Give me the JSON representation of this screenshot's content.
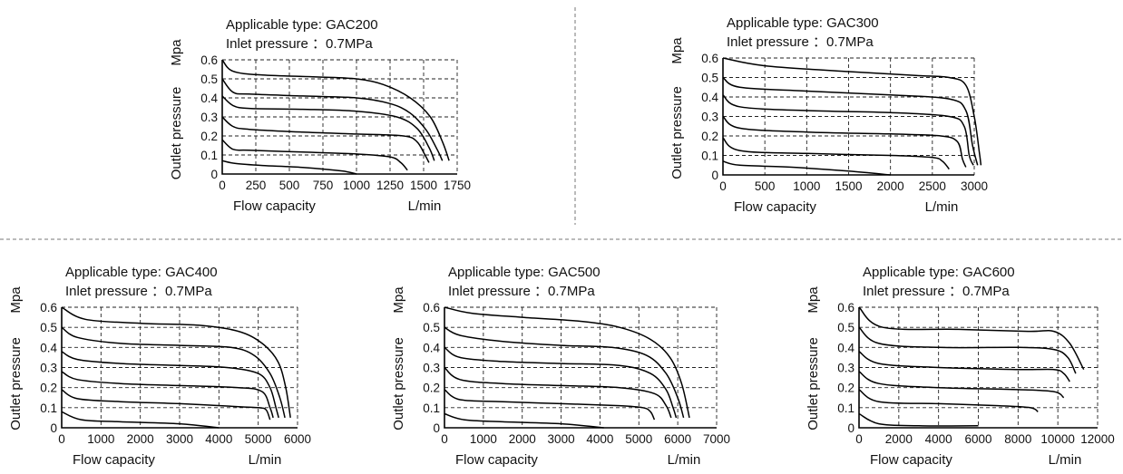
{
  "figure": {
    "flow_label": "Flow capacity",
    "flow_unit": "L/min",
    "outlet_label": "Outlet pressure",
    "pressure_unit": "Mpa"
  },
  "chart_data": [
    {
      "type": "line",
      "title": "Applicable type: GAC200",
      "subtitle": "Inlet pressure ：0.7MPa",
      "xlabel": "Flow capacity",
      "xunit": "L/min",
      "ylabel": "Outlet pressure",
      "yunit": "Mpa",
      "xlim": [
        0,
        1750
      ],
      "ylim": [
        0,
        0.6
      ],
      "xticks": [
        0,
        250,
        500,
        750,
        1000,
        1250,
        1500,
        1750
      ],
      "xtick_labels": [
        "0",
        "250",
        "500",
        "750",
        "1000",
        "1250",
        "1500",
        "1750"
      ],
      "yticks": [
        0,
        0.1,
        0.2,
        0.3,
        0.4,
        0.5,
        0.6
      ],
      "grid": true,
      "series": [
        {
          "x": [
            0,
            100,
            300,
            600,
            900,
            1000
          ],
          "y": [
            0.07,
            0.055,
            0.045,
            0.035,
            0.015,
            0.0
          ]
        },
        {
          "x": [
            0,
            80,
            200,
            600,
            1000,
            1250,
            1330,
            1380
          ],
          "y": [
            0.18,
            0.13,
            0.125,
            0.115,
            0.105,
            0.09,
            0.06,
            0.02
          ]
        },
        {
          "x": [
            0,
            80,
            200,
            600,
            1000,
            1350,
            1450,
            1510,
            1540
          ],
          "y": [
            0.3,
            0.25,
            0.235,
            0.22,
            0.21,
            0.2,
            0.17,
            0.1,
            0.06
          ]
        },
        {
          "x": [
            0,
            80,
            200,
            600,
            1000,
            1300,
            1450,
            1540,
            1580
          ],
          "y": [
            0.41,
            0.36,
            0.345,
            0.34,
            0.33,
            0.3,
            0.24,
            0.14,
            0.07
          ]
        },
        {
          "x": [
            0,
            80,
            200,
            600,
            1000,
            1250,
            1400,
            1520,
            1600,
            1640
          ],
          "y": [
            0.5,
            0.43,
            0.42,
            0.41,
            0.4,
            0.37,
            0.32,
            0.23,
            0.13,
            0.07
          ]
        },
        {
          "x": [
            0,
            80,
            300,
            700,
            1000,
            1200,
            1400,
            1550,
            1640,
            1690
          ],
          "y": [
            0.6,
            0.54,
            0.52,
            0.51,
            0.5,
            0.47,
            0.4,
            0.3,
            0.17,
            0.07
          ]
        }
      ]
    },
    {
      "type": "line",
      "title": "Applicable type: GAC300",
      "subtitle": "Inlet pressure ：0.7MPa",
      "xlabel": "Flow capacity",
      "xunit": "L/min",
      "ylabel": "Outlet pressure",
      "yunit": "Mpa",
      "xlim": [
        0,
        3000
      ],
      "ylim": [
        0,
        0.6
      ],
      "xticks": [
        0,
        500,
        1000,
        1500,
        2000,
        2500,
        3000
      ],
      "xtick_labels": [
        "0",
        "500",
        "1000",
        "1500",
        "2000",
        "2500",
        "3000"
      ],
      "yticks": [
        0,
        0.1,
        0.2,
        0.3,
        0.4,
        0.5,
        0.6
      ],
      "grid": true,
      "series": [
        {
          "x": [
            0,
            200,
            800,
            1500,
            2000
          ],
          "y": [
            0.07,
            0.05,
            0.04,
            0.02,
            0.0
          ]
        },
        {
          "x": [
            0,
            200,
            1000,
            2000,
            2500,
            2620,
            2700
          ],
          "y": [
            0.19,
            0.125,
            0.11,
            0.1,
            0.09,
            0.07,
            0.03
          ]
        },
        {
          "x": [
            0,
            200,
            1000,
            2000,
            2600,
            2800,
            2860,
            2900
          ],
          "y": [
            0.3,
            0.24,
            0.22,
            0.21,
            0.2,
            0.17,
            0.08,
            0.04
          ]
        },
        {
          "x": [
            0,
            200,
            1000,
            2000,
            2700,
            2880,
            2940,
            2990
          ],
          "y": [
            0.41,
            0.35,
            0.33,
            0.32,
            0.3,
            0.25,
            0.1,
            0.05
          ]
        },
        {
          "x": [
            0,
            200,
            1000,
            2000,
            2700,
            2900,
            2980,
            3040
          ],
          "y": [
            0.5,
            0.45,
            0.43,
            0.41,
            0.39,
            0.33,
            0.15,
            0.05
          ]
        },
        {
          "x": [
            0,
            500,
            1500,
            2300,
            2700,
            2900,
            3000,
            3060,
            3080
          ],
          "y": [
            0.6,
            0.56,
            0.53,
            0.51,
            0.5,
            0.46,
            0.3,
            0.12,
            0.05
          ]
        }
      ]
    },
    {
      "type": "line",
      "title": "Applicable type: GAC400",
      "subtitle": "Inlet pressure ：0.7MPa",
      "xlabel": "Flow capacity",
      "xunit": "L/min",
      "ylabel": "Outlet pressure",
      "yunit": "Mpa",
      "xlim": [
        0,
        6000
      ],
      "ylim": [
        0,
        0.6
      ],
      "xticks": [
        0,
        1000,
        2000,
        3000,
        4000,
        5000,
        6000
      ],
      "xtick_labels": [
        "0",
        "1000",
        "2000",
        "3000",
        "4000",
        "5000",
        "6000"
      ],
      "yticks": [
        0,
        0.1,
        0.2,
        0.3,
        0.4,
        0.5,
        0.6
      ],
      "grid": true,
      "series": [
        {
          "x": [
            0,
            500,
            1500,
            3000,
            4000
          ],
          "y": [
            0.08,
            0.04,
            0.03,
            0.02,
            0.0
          ]
        },
        {
          "x": [
            0,
            400,
            1500,
            3000,
            4500,
            5000,
            5200,
            5300
          ],
          "y": [
            0.19,
            0.145,
            0.13,
            0.12,
            0.105,
            0.1,
            0.09,
            0.04
          ]
        },
        {
          "x": [
            0,
            400,
            1500,
            3000,
            4500,
            5100,
            5300,
            5380
          ],
          "y": [
            0.28,
            0.24,
            0.22,
            0.21,
            0.2,
            0.18,
            0.1,
            0.05
          ]
        },
        {
          "x": [
            0,
            400,
            1500,
            3000,
            4200,
            5000,
            5300,
            5450,
            5520
          ],
          "y": [
            0.38,
            0.34,
            0.32,
            0.31,
            0.3,
            0.27,
            0.2,
            0.1,
            0.05
          ]
        },
        {
          "x": [
            0,
            400,
            1500,
            3000,
            4300,
            4900,
            5300,
            5550,
            5680
          ],
          "y": [
            0.5,
            0.45,
            0.42,
            0.41,
            0.4,
            0.36,
            0.27,
            0.15,
            0.05
          ]
        },
        {
          "x": [
            0,
            600,
            2000,
            3500,
            4500,
            5100,
            5500,
            5700,
            5820
          ],
          "y": [
            0.6,
            0.54,
            0.52,
            0.51,
            0.48,
            0.42,
            0.33,
            0.2,
            0.05
          ]
        }
      ]
    },
    {
      "type": "line",
      "title": "Applicable type: GAC500",
      "subtitle": "Inlet pressure ：0.7MPa",
      "xlabel": "Flow capacity",
      "xunit": "L/min",
      "ylabel": "Outlet pressure",
      "yunit": "Mpa",
      "xlim": [
        0,
        7000
      ],
      "ylim": [
        0,
        0.6
      ],
      "xticks": [
        0,
        1000,
        2000,
        3000,
        4000,
        5000,
        6000,
        7000
      ],
      "xtick_labels": [
        "0",
        "1000",
        "2000",
        "3000",
        "4000",
        "5000",
        "6000",
        "7000"
      ],
      "yticks": [
        0,
        0.1,
        0.2,
        0.3,
        0.4,
        0.5,
        0.6
      ],
      "grid": true,
      "series": [
        {
          "x": [
            0,
            500,
            1500,
            3000,
            4100
          ],
          "y": [
            0.07,
            0.04,
            0.03,
            0.02,
            0.0
          ]
        },
        {
          "x": [
            0,
            400,
            1500,
            3000,
            4500,
            5100,
            5300,
            5400
          ],
          "y": [
            0.19,
            0.14,
            0.13,
            0.12,
            0.11,
            0.1,
            0.08,
            0.04
          ]
        },
        {
          "x": [
            0,
            400,
            1500,
            3000,
            4500,
            5400,
            5700,
            5830
          ],
          "y": [
            0.3,
            0.24,
            0.22,
            0.21,
            0.2,
            0.17,
            0.11,
            0.05
          ]
        },
        {
          "x": [
            0,
            400,
            1500,
            3000,
            4500,
            5300,
            5700,
            5880,
            5960
          ],
          "y": [
            0.4,
            0.35,
            0.33,
            0.32,
            0.31,
            0.27,
            0.19,
            0.1,
            0.05
          ]
        },
        {
          "x": [
            0,
            400,
            1500,
            3000,
            4300,
            5200,
            5700,
            6000,
            6150
          ],
          "y": [
            0.5,
            0.46,
            0.43,
            0.41,
            0.4,
            0.36,
            0.27,
            0.15,
            0.05
          ]
        },
        {
          "x": [
            0,
            700,
            2000,
            3500,
            4500,
            5300,
            5800,
            6100,
            6300
          ],
          "y": [
            0.6,
            0.57,
            0.55,
            0.53,
            0.5,
            0.44,
            0.35,
            0.22,
            0.05
          ]
        }
      ]
    },
    {
      "type": "line",
      "title": "Applicable type: GAC600",
      "subtitle": "Inlet pressure ：0.7MPa",
      "xlabel": "Flow capacity",
      "xunit": "L/min",
      "ylabel": "Outlet pressure",
      "yunit": "Mpa",
      "xlim": [
        0,
        12000
      ],
      "ylim": [
        0,
        0.6
      ],
      "xticks": [
        0,
        2000,
        4000,
        6000,
        8000,
        10000,
        12000
      ],
      "xtick_labels": [
        "0",
        "2000",
        "4000",
        "6000",
        "8000",
        "10000",
        "12000"
      ],
      "yticks": [
        0,
        0.1,
        0.2,
        0.3,
        0.4,
        0.5,
        0.6
      ],
      "grid": true,
      "series": [
        {
          "x": [
            0,
            1000,
            3000,
            6000
          ],
          "y": [
            0.07,
            0.02,
            0.01,
            0.01
          ]
        },
        {
          "x": [
            0,
            1000,
            4000,
            7000,
            8600,
            9000
          ],
          "y": [
            0.19,
            0.13,
            0.12,
            0.11,
            0.1,
            0.08
          ]
        },
        {
          "x": [
            0,
            1000,
            4000,
            8000,
            9800,
            10300
          ],
          "y": [
            0.28,
            0.22,
            0.2,
            0.19,
            0.18,
            0.15
          ]
        },
        {
          "x": [
            0,
            1000,
            4000,
            8000,
            9800,
            10300,
            10600
          ],
          "y": [
            0.38,
            0.32,
            0.3,
            0.29,
            0.29,
            0.27,
            0.23
          ]
        },
        {
          "x": [
            0,
            1000,
            4000,
            8000,
            9800,
            10500,
            10900
          ],
          "y": [
            0.5,
            0.42,
            0.4,
            0.4,
            0.39,
            0.35,
            0.27
          ]
        },
        {
          "x": [
            0,
            1200,
            5000,
            8500,
            9800,
            10600,
            11300
          ],
          "y": [
            0.6,
            0.5,
            0.49,
            0.48,
            0.48,
            0.42,
            0.29
          ]
        }
      ]
    }
  ]
}
